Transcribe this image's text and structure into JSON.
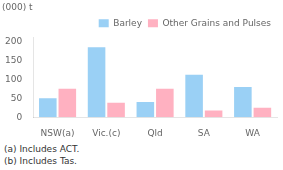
{
  "chart_data": {
    "type": "bar",
    "ylabel": "(000) t",
    "categories": [
      "NSW(a)",
      "Vic.(c)",
      "Qld",
      "SA",
      "WA"
    ],
    "series": [
      {
        "name": "Barley",
        "values": [
          50,
          185,
          40,
          112,
          80
        ]
      },
      {
        "name": "Other Grains and Pulses",
        "values": [
          75,
          38,
          75,
          18,
          25
        ]
      }
    ],
    "ylim": [
      0,
      210
    ],
    "yticks": [
      0,
      50,
      100,
      150,
      200
    ],
    "grid": false,
    "legend": "upper right",
    "annotations": [
      "(a) Includes ACT.",
      "(b) Includes Tas."
    ]
  }
}
